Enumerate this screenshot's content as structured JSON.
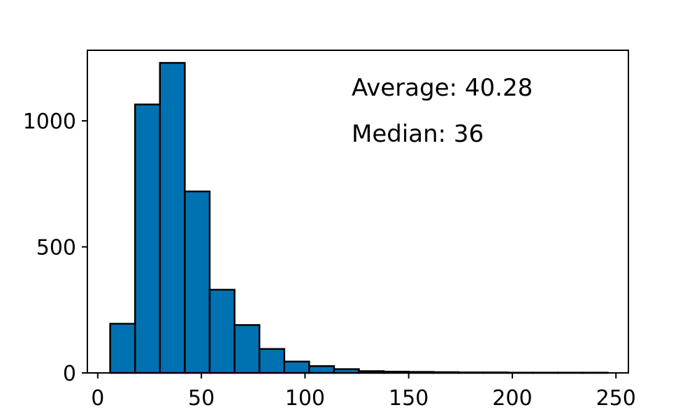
{
  "chart_data": {
    "type": "bar",
    "title": "",
    "xlabel": "",
    "ylabel": "",
    "bin_edges": [
      6,
      18,
      30,
      42,
      54,
      66,
      78,
      90,
      102,
      114,
      126,
      138,
      150,
      162,
      174,
      186,
      198,
      210,
      222,
      234,
      246
    ],
    "values": [
      195,
      1065,
      1230,
      720,
      330,
      190,
      95,
      45,
      27,
      15,
      7,
      5,
      4,
      3,
      2,
      2,
      1,
      1,
      1,
      1
    ],
    "xlim": [
      -5,
      256
    ],
    "ylim": [
      0,
      1280
    ],
    "xticks": [
      0,
      50,
      100,
      150,
      200,
      250
    ],
    "yticks": [
      0,
      500,
      1000
    ],
    "xtick_labels": [
      "0",
      "50",
      "100",
      "150",
      "200",
      "250"
    ],
    "ytick_labels": [
      "0",
      "500",
      "1000"
    ],
    "bar_color": "#0072b2",
    "edge_color": "#000000",
    "grid": false,
    "annotations": [
      "Average: 40.28",
      "Median: 36"
    ]
  }
}
